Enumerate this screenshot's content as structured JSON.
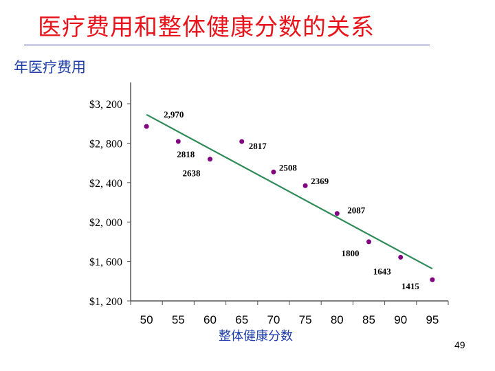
{
  "slide": {
    "title": "医疗费用和整体健康分数的关系",
    "page_number": "49"
  },
  "chart_data": {
    "type": "scatter",
    "title": "医疗费用和整体健康分数的关系",
    "ylabel": "年医疗费用",
    "xlabel": "整体健康分数",
    "x": [
      50,
      55,
      60,
      65,
      70,
      75,
      80,
      85,
      90,
      95
    ],
    "y": [
      2970,
      2818,
      2638,
      2817,
      2508,
      2369,
      2087,
      1800,
      1643,
      1415
    ],
    "point_labels": [
      "2,970",
      "2818",
      "2638",
      "2817",
      "2508",
      "2369",
      "2087",
      "1800",
      "1643",
      "1415"
    ],
    "xticks": [
      "50",
      "55",
      "60",
      "65",
      "70",
      "75",
      "80",
      "85",
      "90",
      "95"
    ],
    "yticks": [
      1200,
      1600,
      2000,
      2400,
      2800,
      3200
    ],
    "ytick_labels": [
      "$1, 200",
      "$1, 600",
      "$2, 000",
      "$2, 400",
      "$2, 800",
      "$3, 200"
    ],
    "xlim": [
      47.5,
      97.5
    ],
    "ylim": [
      1200,
      3200
    ],
    "trendline": {
      "x": [
        50,
        95
      ],
      "y": [
        3090,
        1526
      ]
    },
    "colors": {
      "points": "#800080",
      "trend": "#2e8b57"
    },
    "grid": false
  }
}
